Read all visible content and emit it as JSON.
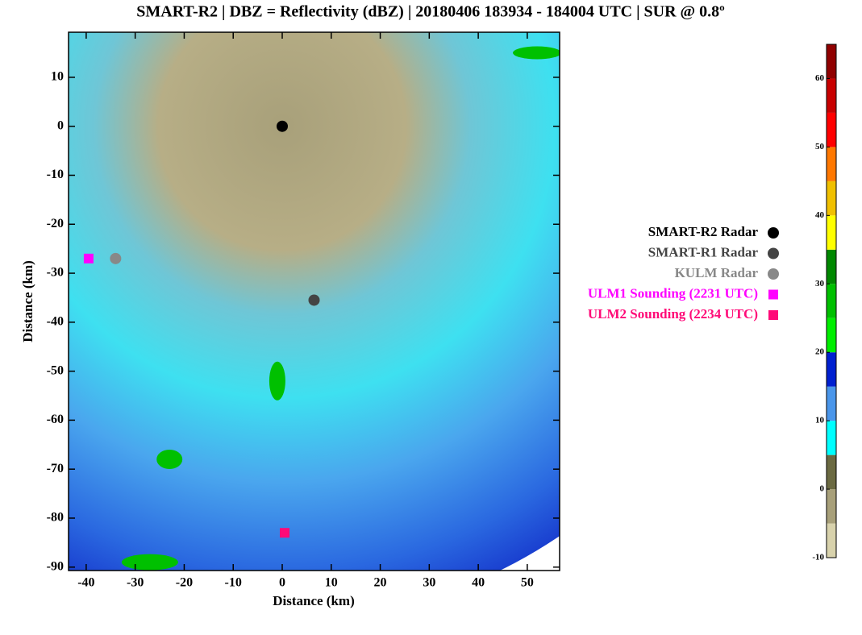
{
  "chart_data": [
    {
      "type": "scatter",
      "title": "SMART-R2 | DBZ = Reflectivity (dBZ) | 20180406 183934 - 184004 UTC | SUR @ 0.8º",
      "x_label": "Distance (km)",
      "y_label": "Distance (km)",
      "xlim": [
        -43.6,
        56.6
      ],
      "ylim": [
        -90.7,
        19.2
      ],
      "xticks": [
        -40,
        -30,
        -20,
        -10,
        0,
        10,
        20,
        30,
        40,
        50
      ],
      "yticks": [
        -90,
        -80,
        -70,
        -60,
        -50,
        -40,
        -30,
        -20,
        -10,
        0,
        10
      ],
      "series": [
        {
          "name": "SMART-R2 Radar",
          "color": "#000000",
          "marker": "circle",
          "x": [
            0
          ],
          "y": [
            0
          ]
        },
        {
          "name": "SMART-R1 Radar",
          "color": "#444444",
          "marker": "circle",
          "x": [
            6.5
          ],
          "y": [
            -35.5
          ]
        },
        {
          "name": "KULM Radar",
          "color": "#888888",
          "marker": "circle",
          "x": [
            -34
          ],
          "y": [
            -27
          ]
        },
        {
          "name": "ULM1 Sounding (2231 UTC)",
          "color": "#ff00ff",
          "marker": "square",
          "x": [
            -39.5
          ],
          "y": [
            -27
          ]
        },
        {
          "name": "ULM2 Sounding (2234 UTC)",
          "color": "#ff0a78",
          "marker": "square",
          "x": [
            0.5
          ],
          "y": [
            -83
          ]
        }
      ]
    },
    {
      "type": "colorbar",
      "ylim": [
        -10,
        65
      ],
      "yticks": [
        -10,
        0,
        10,
        20,
        30,
        40,
        50,
        60
      ],
      "bins": [
        -10,
        -5,
        0,
        5,
        10,
        15,
        20,
        25,
        30,
        35,
        40,
        45,
        50,
        55,
        60,
        65
      ],
      "colors": [
        "#d8d2ac",
        "#a8a07a",
        "#6b6a42",
        "#00ffff",
        "#4a96ea",
        "#0020d0",
        "#00ee00",
        "#00c000",
        "#008800",
        "#ffff00",
        "#f0c000",
        "#ff7800",
        "#ff0000",
        "#c80000",
        "#900000"
      ]
    }
  ]
}
